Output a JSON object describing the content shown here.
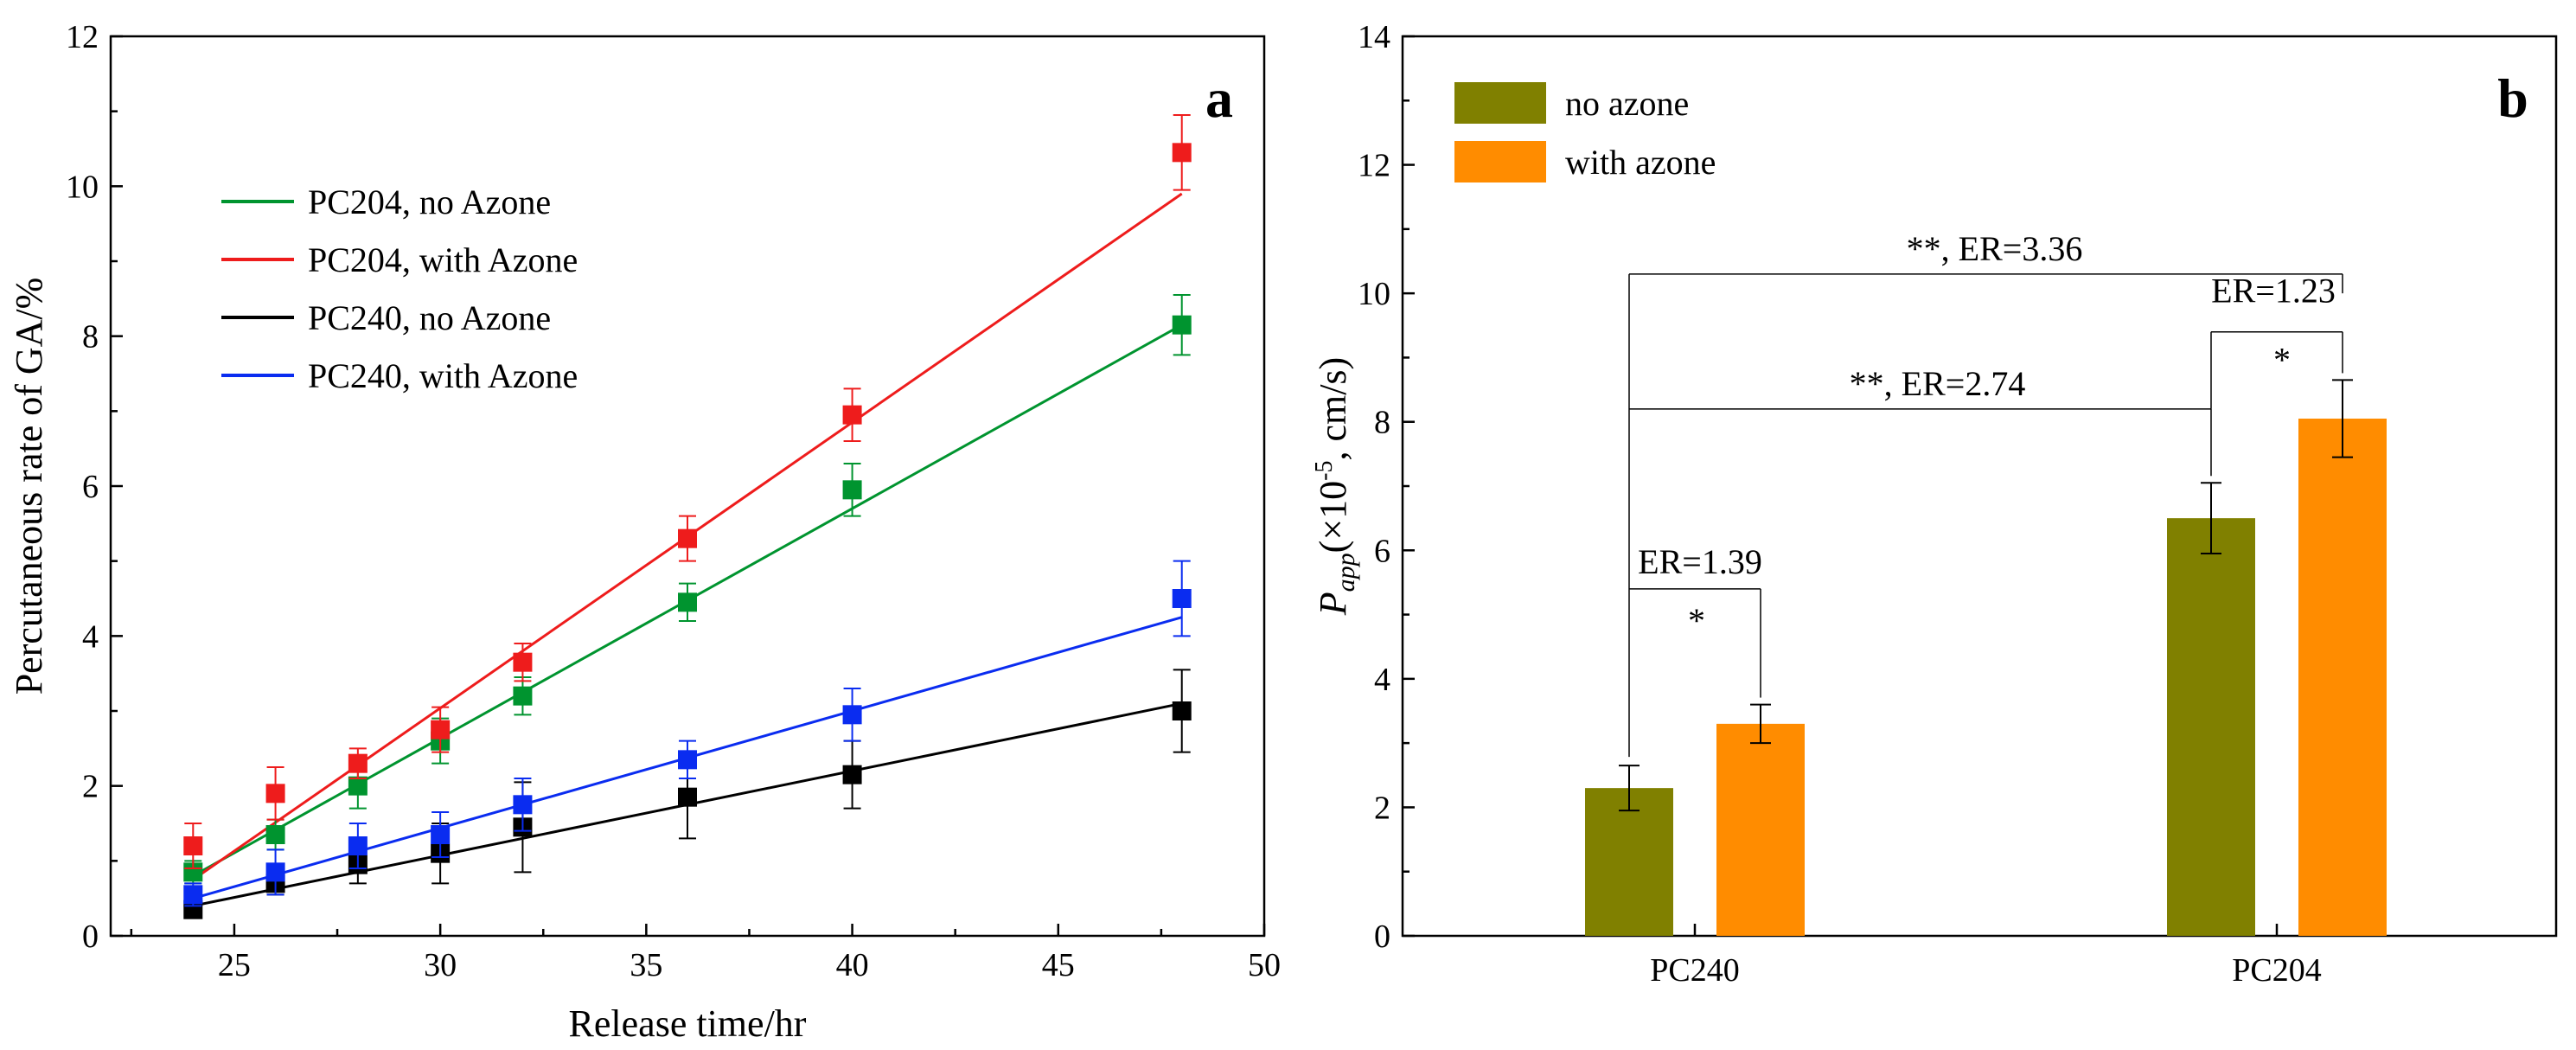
{
  "chart_data": [
    {
      "type": "scatter",
      "panel_label": "a",
      "xlabel": "Release time/hr",
      "ylabel": "Percutaneous rate of GA/%",
      "xlim": [
        22,
        50
      ],
      "ylim": [
        0,
        12
      ],
      "xticks": [
        25,
        30,
        35,
        40,
        45,
        50
      ],
      "yticks": [
        0,
        2,
        4,
        6,
        8,
        10,
        12
      ],
      "legend_position": "upper-left",
      "series": [
        {
          "name": "PC204, no Azone",
          "color": "#00942f",
          "x": [
            24,
            26,
            28,
            30,
            32,
            36,
            40,
            48
          ],
          "y": [
            0.85,
            1.35,
            2.0,
            2.6,
            3.2,
            4.45,
            5.95,
            8.15
          ],
          "err": [
            0.15,
            0.2,
            0.3,
            0.3,
            0.25,
            0.25,
            0.35,
            0.4
          ],
          "fit": [
            [
              24,
              0.8
            ],
            [
              48,
              8.15
            ]
          ]
        },
        {
          "name": "PC204, with Azone",
          "color": "#ee1c1c",
          "x": [
            24,
            26,
            28,
            30,
            32,
            36,
            40,
            48
          ],
          "y": [
            1.2,
            1.9,
            2.3,
            2.75,
            3.65,
            5.3,
            6.95,
            10.45
          ],
          "err": [
            0.3,
            0.35,
            0.2,
            0.3,
            0.25,
            0.3,
            0.35,
            0.5
          ],
          "fit": [
            [
              24,
              0.75
            ],
            [
              48,
              9.9
            ]
          ]
        },
        {
          "name": "PC240, no Azone",
          "color": "#000000",
          "x": [
            24,
            26,
            28,
            30,
            32,
            36,
            40,
            48
          ],
          "y": [
            0.35,
            0.7,
            0.95,
            1.1,
            1.45,
            1.85,
            2.15,
            3.0
          ],
          "err": [
            0.1,
            0.15,
            0.25,
            0.4,
            0.6,
            0.55,
            0.45,
            0.55
          ],
          "fit": [
            [
              24,
              0.4
            ],
            [
              48,
              3.1
            ]
          ]
        },
        {
          "name": "PC240, with Azone",
          "color": "#0a2cf0",
          "x": [
            24,
            26,
            28,
            30,
            32,
            36,
            40,
            48
          ],
          "y": [
            0.55,
            0.85,
            1.2,
            1.35,
            1.75,
            2.35,
            2.95,
            4.5
          ],
          "err": [
            0.15,
            0.3,
            0.3,
            0.3,
            0.35,
            0.25,
            0.35,
            0.5
          ],
          "fit": [
            [
              24,
              0.5
            ],
            [
              48,
              4.25
            ]
          ]
        }
      ]
    },
    {
      "type": "bar",
      "panel_label": "b",
      "categories": [
        "PC240",
        "PC204"
      ],
      "ylabel_main": "P",
      "ylabel_sub": "app",
      "ylabel_rest": "(×10",
      "ylabel_exp": "-5",
      "ylabel_unit": ", cm/s)",
      "ylim": [
        0,
        14
      ],
      "yticks": [
        0,
        2,
        4,
        6,
        8,
        10,
        12,
        14
      ],
      "legend_position": "upper-left",
      "series": [
        {
          "name": "no azone",
          "color": "#808000",
          "values": [
            2.3,
            6.5
          ],
          "err": [
            0.35,
            0.55
          ]
        },
        {
          "name": "with azone",
          "color": "#ff8c00",
          "values": [
            3.3,
            8.05
          ],
          "err": [
            0.3,
            0.6
          ]
        }
      ],
      "annotations": [
        {
          "text": "**,  ER=3.36"
        },
        {
          "text": "ER=1.23"
        },
        {
          "text": "*"
        },
        {
          "text": "**,  ER=2.74"
        },
        {
          "text": "ER=1.39"
        },
        {
          "text": "*"
        }
      ]
    }
  ]
}
